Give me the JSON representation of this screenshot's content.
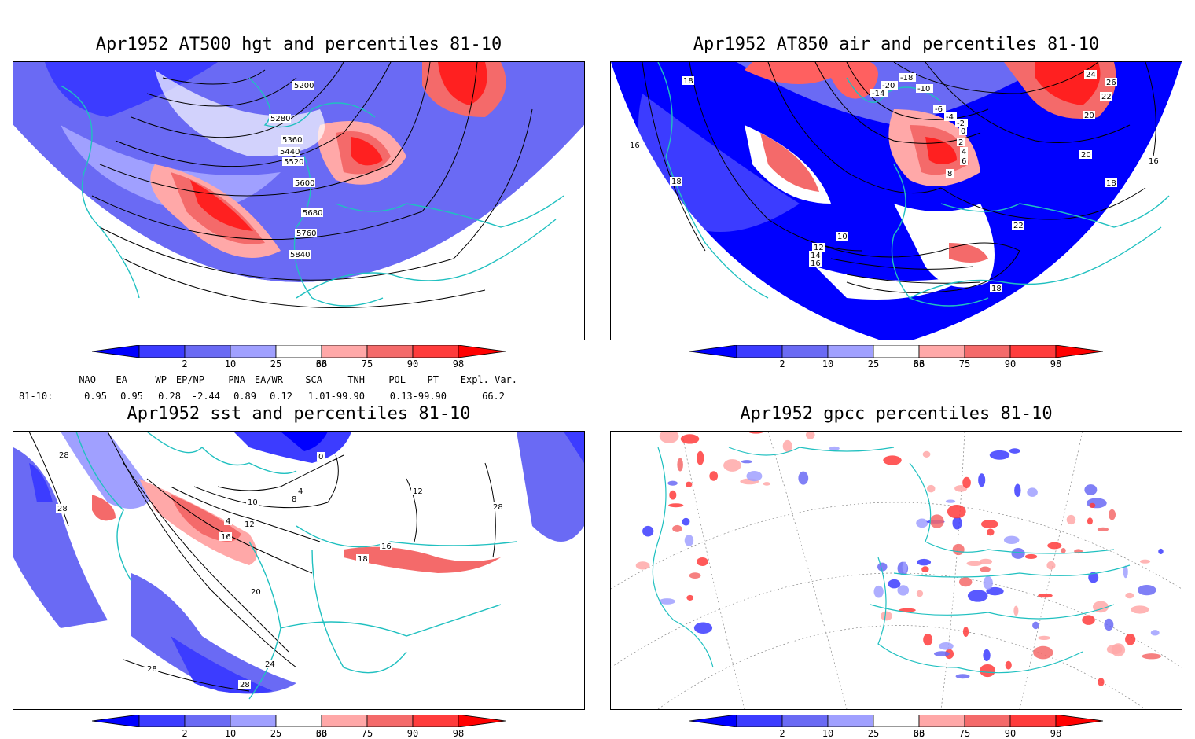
{
  "panels": [
    {
      "id": "hgt",
      "title": "Apr1952 AT500 hgt and percentiles 81-10",
      "contour_labels": [
        "5200",
        "5280",
        "5360",
        "5440",
        "5520",
        "5600",
        "5680",
        "5760",
        "5840"
      ]
    },
    {
      "id": "air",
      "title": "Apr1952 AT850 air and percentiles 81-10",
      "contour_labels": [
        "18",
        "16",
        "18",
        "-20",
        "-14",
        "-18",
        "-10",
        "-6",
        "-4",
        "-2",
        "0",
        "2",
        "4",
        "6",
        "8",
        "10",
        "12",
        "14",
        "16",
        "18",
        "20",
        "22",
        "24",
        "26",
        "22",
        "20",
        "16",
        "18"
      ]
    },
    {
      "id": "sst",
      "title": "Apr1952 sst and percentiles 81-10",
      "contour_labels": [
        "28",
        "28",
        "0",
        "4",
        "8",
        "10",
        "4",
        "12",
        "16",
        "16",
        "18",
        "20",
        "24",
        "28",
        "28",
        "12",
        "28"
      ]
    },
    {
      "id": "gpcc",
      "title": "Apr1952 gpcc percentiles 81-10",
      "contour_labels": []
    }
  ],
  "colorbar": {
    "ticks": [
      "2",
      "10",
      "25",
      "33",
      "66",
      "75",
      "90",
      "98"
    ],
    "colors": {
      "below2": "#0000ff",
      "2_10": "#3c3cff",
      "10_25": "#6a6af4",
      "25_33": "#a0a0ff",
      "33_66": "#ffffff",
      "66_75": "#ffa8a8",
      "75_90": "#f46a6a",
      "90_98": "#ff3c3c",
      "above98": "#ff0000"
    }
  },
  "indices": {
    "row_label": "81-10:",
    "headers": [
      "NAO",
      "EA",
      "WP",
      "EP/NP",
      "PNA",
      "EA/WR",
      "SCA",
      "TNH",
      "POL",
      "PT",
      "Expl. Var."
    ],
    "values": [
      "0.95",
      "0.95",
      "0.28",
      "-2.44",
      "0.89",
      "0.12",
      "1.01-99.90",
      "",
      "0.13-99.90",
      "",
      "66.2"
    ]
  },
  "colors": {
    "coastline": "#20c0c0",
    "contour": "#000000"
  }
}
